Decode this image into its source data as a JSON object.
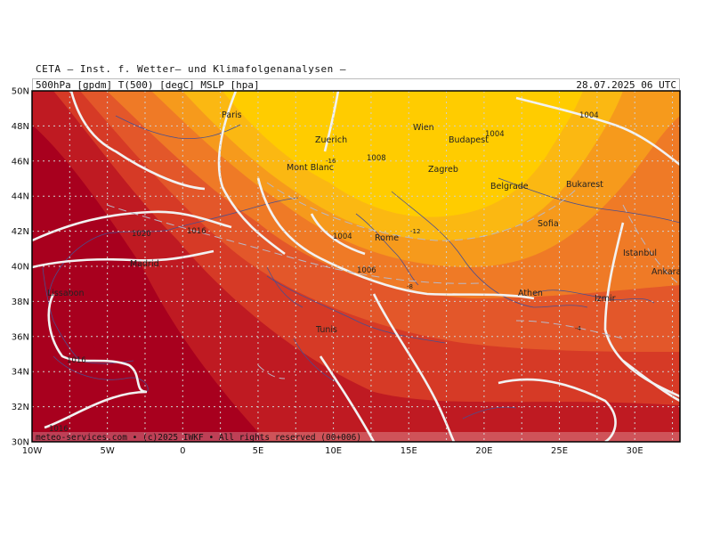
{
  "header": {
    "institute": "CETA – Inst. f. Wetter– und Klimafolgenanalysen –",
    "parameters": "500hPa [gpdm] T(500) [degC] MSLP [hpa]",
    "valid_time": "28.07.2025 06 UTC"
  },
  "footer": {
    "copyright": "meteo-services.com • (c)2025 IWKF • All rights reserved (00+006)"
  },
  "axes": {
    "lat_labels": [
      "50N",
      "48N",
      "46N",
      "44N",
      "42N",
      "40N",
      "38N",
      "36N",
      "34N",
      "32N",
      "30N"
    ],
    "lon_labels": [
      "10W",
      "5W",
      "0",
      "5E",
      "10E",
      "15E",
      "20E",
      "25E",
      "30E"
    ]
  },
  "cities": [
    {
      "name": "Paris"
    },
    {
      "name": "Zuerich"
    },
    {
      "name": "Mont Blanc"
    },
    {
      "name": "Wien"
    },
    {
      "name": "Budapest"
    },
    {
      "name": "Zagreb"
    },
    {
      "name": "Belgrade"
    },
    {
      "name": "Bukarest"
    },
    {
      "name": "Sofia"
    },
    {
      "name": "Rome"
    },
    {
      "name": "Madrid"
    },
    {
      "name": "Lissabon"
    },
    {
      "name": "Tunis"
    },
    {
      "name": "Athen"
    },
    {
      "name": "Istanbul"
    },
    {
      "name": "Izmir"
    },
    {
      "name": "Ankara"
    }
  ],
  "isobar_labels": [
    "1004",
    "1004",
    "1008",
    "1016",
    "1020",
    "1004",
    "1006",
    "1016",
    "1016"
  ],
  "temp_labels": [
    "-16",
    "-12",
    "-8",
    "-4"
  ],
  "colors": {
    "band_darkest": "#a8001e",
    "band_2": "#bf1a22",
    "band_3": "#d63a26",
    "band_4": "#e3572a",
    "band_5": "#ef7a26",
    "band_6": "#f69a1c",
    "band_7": "#fbb812",
    "band_core": "#ffcc00",
    "isobar": "#f2f2f2",
    "coast": "#4a4f90",
    "mont_blanc": "#22cc22"
  }
}
